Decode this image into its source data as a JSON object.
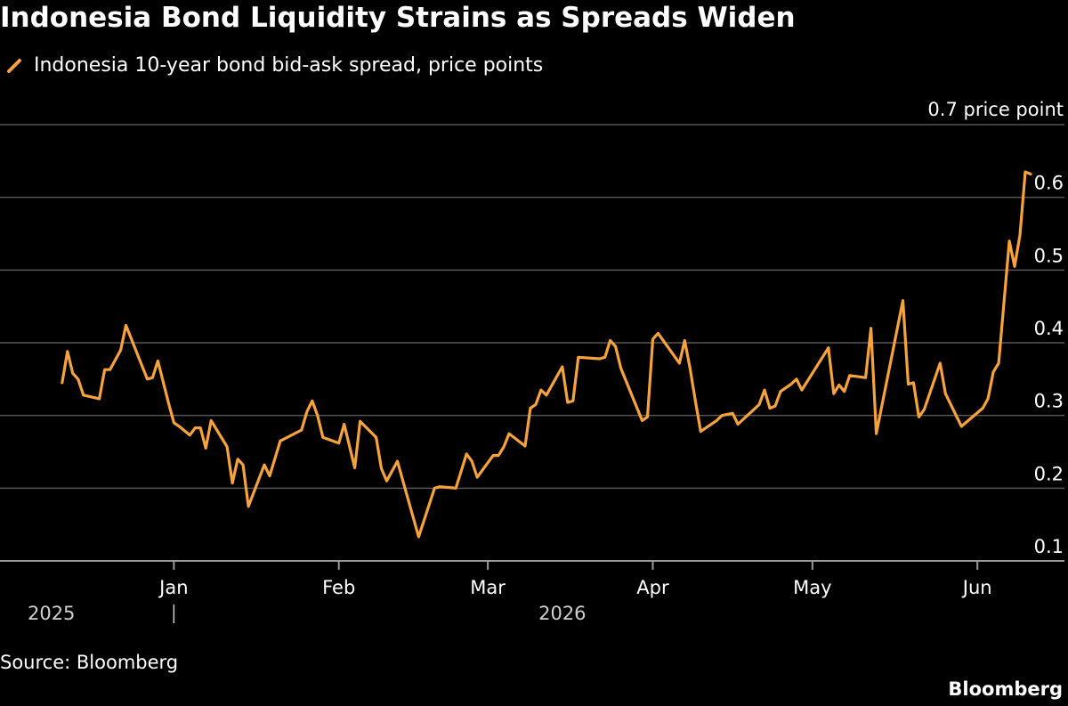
{
  "title": "Indonesia Bond Liquidity Strains as Spreads Widen",
  "source": "Source: Bloomberg",
  "brand": "Bloomberg",
  "chart_data": {
    "type": "line",
    "y_unit_label": "0.7 price point",
    "ylim": [
      0.1,
      0.7
    ],
    "y_ticks": [
      0.1,
      0.2,
      0.3,
      0.4,
      0.5,
      0.6
    ],
    "y_tick_labels": [
      "0.1",
      "0.2",
      "0.3",
      "0.4",
      "0.5",
      "0.6"
    ],
    "grid": true,
    "x_start": "2025-12-01",
    "x_end": "2026-06-10",
    "x_ticks": [
      {
        "date": "2026-01-01",
        "label": "Jan"
      },
      {
        "date": "2026-02-01",
        "label": "Feb"
      },
      {
        "date": "2026-03-01",
        "label": "Mar"
      },
      {
        "date": "2026-04-01",
        "label": "Apr"
      },
      {
        "date": "2026-05-01",
        "label": "May"
      },
      {
        "date": "2026-06-01",
        "label": "Jun"
      }
    ],
    "year_labels": [
      {
        "date": "2025-12-15",
        "label": "2025"
      },
      {
        "date": "2026-03-15",
        "label": "2026"
      }
    ],
    "series": [
      {
        "name": "Indonesia 10-year bond bid-ask spread, price points",
        "color": "#F6A33C",
        "points": [
          [
            "2025-12-11",
            0.345
          ],
          [
            "2025-12-12",
            0.388
          ],
          [
            "2025-12-13",
            0.358
          ],
          [
            "2025-12-14",
            0.35
          ],
          [
            "2025-12-15",
            0.328
          ],
          [
            "2025-12-18",
            0.323
          ],
          [
            "2025-12-19",
            0.363
          ],
          [
            "2025-12-20",
            0.363
          ],
          [
            "2025-12-22",
            0.39
          ],
          [
            "2025-12-23",
            0.424
          ],
          [
            "2025-12-27",
            0.35
          ],
          [
            "2025-12-28",
            0.352
          ],
          [
            "2025-12-29",
            0.375
          ],
          [
            "2025-12-31",
            0.317
          ],
          [
            "2026-01-01",
            0.29
          ],
          [
            "2026-01-02",
            0.285
          ],
          [
            "2026-01-04",
            0.273
          ],
          [
            "2026-01-05",
            0.283
          ],
          [
            "2026-01-06",
            0.283
          ],
          [
            "2026-01-07",
            0.255
          ],
          [
            "2026-01-08",
            0.293
          ],
          [
            "2026-01-11",
            0.257
          ],
          [
            "2026-01-12",
            0.207
          ],
          [
            "2026-01-13",
            0.24
          ],
          [
            "2026-01-14",
            0.232
          ],
          [
            "2026-01-15",
            0.175
          ],
          [
            "2026-01-18",
            0.232
          ],
          [
            "2026-01-19",
            0.217
          ],
          [
            "2026-01-21",
            0.265
          ],
          [
            "2026-01-25",
            0.28
          ],
          [
            "2026-01-26",
            0.305
          ],
          [
            "2026-01-27",
            0.32
          ],
          [
            "2026-01-28",
            0.3
          ],
          [
            "2026-01-29",
            0.27
          ],
          [
            "2026-02-01",
            0.262
          ],
          [
            "2026-02-02",
            0.288
          ],
          [
            "2026-02-04",
            0.228
          ],
          [
            "2026-02-05",
            0.292
          ],
          [
            "2026-02-08",
            0.27
          ],
          [
            "2026-02-09",
            0.227
          ],
          [
            "2026-02-10",
            0.21
          ],
          [
            "2026-02-12",
            0.237
          ],
          [
            "2026-02-16",
            0.133
          ],
          [
            "2026-02-19",
            0.2
          ],
          [
            "2026-02-20",
            0.202
          ],
          [
            "2026-02-23",
            0.2
          ],
          [
            "2026-02-25",
            0.247
          ],
          [
            "2026-02-26",
            0.237
          ],
          [
            "2026-02-27",
            0.215
          ],
          [
            "2026-03-02",
            0.245
          ],
          [
            "2026-03-03",
            0.245
          ],
          [
            "2026-03-04",
            0.257
          ],
          [
            "2026-03-05",
            0.275
          ],
          [
            "2026-03-08",
            0.258
          ],
          [
            "2026-03-09",
            0.31
          ],
          [
            "2026-03-10",
            0.315
          ],
          [
            "2026-03-11",
            0.335
          ],
          [
            "2026-03-12",
            0.328
          ],
          [
            "2026-03-15",
            0.367
          ],
          [
            "2026-03-16",
            0.318
          ],
          [
            "2026-03-17",
            0.32
          ],
          [
            "2026-03-18",
            0.38
          ],
          [
            "2026-03-22",
            0.378
          ],
          [
            "2026-03-23",
            0.38
          ],
          [
            "2026-03-24",
            0.403
          ],
          [
            "2026-03-25",
            0.395
          ],
          [
            "2026-03-26",
            0.365
          ],
          [
            "2026-03-30",
            0.293
          ],
          [
            "2026-03-31",
            0.298
          ],
          [
            "2026-04-01",
            0.405
          ],
          [
            "2026-04-02",
            0.413
          ],
          [
            "2026-04-06",
            0.372
          ],
          [
            "2026-04-07",
            0.403
          ],
          [
            "2026-04-08",
            0.365
          ],
          [
            "2026-04-09",
            0.32
          ],
          [
            "2026-04-10",
            0.278
          ],
          [
            "2026-04-13",
            0.293
          ],
          [
            "2026-04-14",
            0.3
          ],
          [
            "2026-04-16",
            0.303
          ],
          [
            "2026-04-17",
            0.288
          ],
          [
            "2026-04-21",
            0.315
          ],
          [
            "2026-04-22",
            0.335
          ],
          [
            "2026-04-23",
            0.31
          ],
          [
            "2026-04-24",
            0.313
          ],
          [
            "2026-04-25",
            0.333
          ],
          [
            "2026-04-27",
            0.343
          ],
          [
            "2026-04-28",
            0.35
          ],
          [
            "2026-04-29",
            0.335
          ],
          [
            "2026-05-04",
            0.393
          ],
          [
            "2026-05-05",
            0.33
          ],
          [
            "2026-05-06",
            0.342
          ],
          [
            "2026-05-07",
            0.333
          ],
          [
            "2026-05-08",
            0.355
          ],
          [
            "2026-05-11",
            0.352
          ],
          [
            "2026-05-12",
            0.42
          ],
          [
            "2026-05-13",
            0.275
          ],
          [
            "2026-05-18",
            0.458
          ],
          [
            "2026-05-19",
            0.343
          ],
          [
            "2026-05-20",
            0.345
          ],
          [
            "2026-05-21",
            0.298
          ],
          [
            "2026-05-22",
            0.308
          ],
          [
            "2026-05-25",
            0.372
          ],
          [
            "2026-05-26",
            0.33
          ],
          [
            "2026-05-29",
            0.285
          ],
          [
            "2026-06-02",
            0.31
          ],
          [
            "2026-06-03",
            0.323
          ],
          [
            "2026-06-04",
            0.36
          ],
          [
            "2026-06-05",
            0.372
          ],
          [
            "2026-06-07",
            0.54
          ],
          [
            "2026-06-08",
            0.505
          ],
          [
            "2026-06-09",
            0.548
          ],
          [
            "2026-06-10",
            0.635
          ],
          [
            "2026-06-11",
            0.632
          ]
        ]
      }
    ]
  }
}
